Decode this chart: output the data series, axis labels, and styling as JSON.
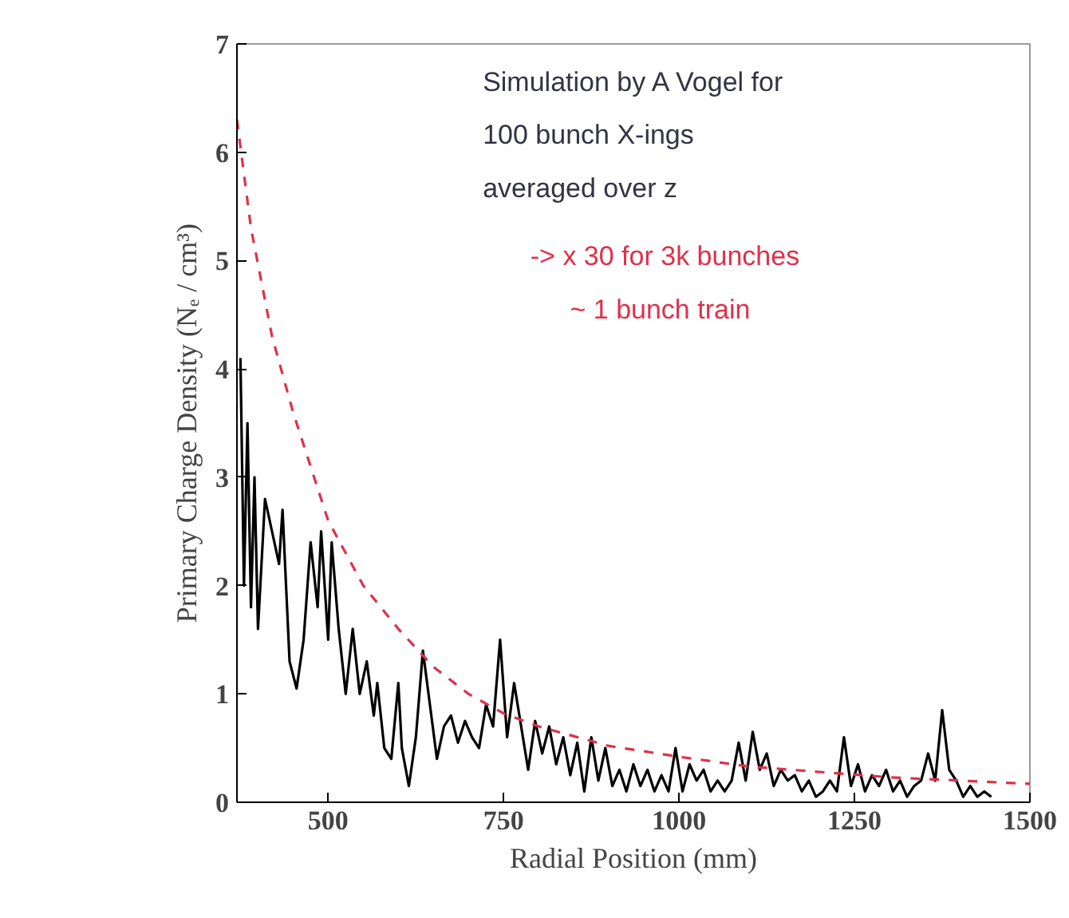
{
  "chart_data": {
    "type": "line",
    "xlabel": "Radial Position (mm)",
    "ylabel": "Primary Charge Density (Nₑ / cm³)",
    "xlim": [
      370,
      1500
    ],
    "ylim": [
      0,
      7
    ],
    "xticks": [
      500,
      750,
      1000,
      1250,
      1500
    ],
    "yticks": [
      0,
      1,
      2,
      3,
      4,
      5,
      6,
      7
    ],
    "grid": false,
    "annotations": [
      "Simulation by A Vogel for",
      "100 bunch X-ings",
      "averaged over z",
      "-> x 30 for 3k bunches",
      "~ 1 bunch train"
    ],
    "series": [
      {
        "color": "#000000",
        "line_style": "solid",
        "x": [
          375,
          380,
          385,
          390,
          395,
          400,
          410,
          420,
          430,
          435,
          445,
          455,
          465,
          475,
          485,
          490,
          500,
          505,
          515,
          525,
          535,
          545,
          555,
          565,
          570,
          580,
          590,
          600,
          605,
          615,
          625,
          635,
          645,
          655,
          665,
          675,
          685,
          695,
          705,
          715,
          725,
          735,
          745,
          755,
          765,
          775,
          785,
          795,
          805,
          815,
          825,
          835,
          845,
          855,
          865,
          875,
          885,
          895,
          905,
          915,
          925,
          935,
          945,
          955,
          965,
          975,
          985,
          995,
          1005,
          1015,
          1025,
          1035,
          1045,
          1055,
          1065,
          1075,
          1085,
          1095,
          1105,
          1115,
          1125,
          1135,
          1145,
          1155,
          1165,
          1175,
          1185,
          1195,
          1205,
          1215,
          1225,
          1235,
          1245,
          1255,
          1265,
          1275,
          1285,
          1295,
          1305,
          1315,
          1325,
          1335,
          1345,
          1355,
          1365,
          1375,
          1385,
          1395,
          1405,
          1415,
          1425,
          1435,
          1445
        ],
        "values": [
          4.1,
          2.0,
          3.5,
          1.8,
          3.0,
          1.6,
          2.8,
          2.5,
          2.2,
          2.7,
          1.3,
          1.05,
          1.5,
          2.4,
          1.8,
          2.5,
          1.5,
          2.4,
          1.6,
          1.0,
          1.6,
          1.0,
          1.3,
          0.8,
          1.1,
          0.5,
          0.4,
          1.1,
          0.5,
          0.15,
          0.6,
          1.4,
          0.9,
          0.4,
          0.7,
          0.8,
          0.55,
          0.75,
          0.6,
          0.5,
          0.9,
          0.7,
          1.5,
          0.6,
          1.1,
          0.7,
          0.3,
          0.75,
          0.45,
          0.7,
          0.35,
          0.6,
          0.25,
          0.55,
          0.1,
          0.6,
          0.2,
          0.5,
          0.15,
          0.3,
          0.1,
          0.35,
          0.15,
          0.3,
          0.1,
          0.25,
          0.1,
          0.5,
          0.1,
          0.35,
          0.2,
          0.3,
          0.1,
          0.2,
          0.1,
          0.2,
          0.55,
          0.2,
          0.65,
          0.3,
          0.45,
          0.15,
          0.3,
          0.2,
          0.25,
          0.1,
          0.2,
          0.05,
          0.1,
          0.2,
          0.1,
          0.6,
          0.15,
          0.35,
          0.1,
          0.25,
          0.15,
          0.3,
          0.1,
          0.2,
          0.05,
          0.15,
          0.2,
          0.45,
          0.2,
          0.85,
          0.3,
          0.2,
          0.05,
          0.15,
          0.05,
          0.1,
          0.05
        ]
      },
      {
        "color": "#e0304a",
        "line_style": "dashed",
        "x": [
          370,
          390,
          420,
          450,
          500,
          550,
          600,
          650,
          700,
          750,
          800,
          900,
          1000,
          1100,
          1200,
          1300,
          1400,
          1500
        ],
        "values": [
          6.3,
          5.3,
          4.3,
          3.6,
          2.6,
          2.0,
          1.6,
          1.25,
          1.0,
          0.82,
          0.7,
          0.52,
          0.42,
          0.33,
          0.28,
          0.23,
          0.2,
          0.17
        ]
      }
    ]
  }
}
